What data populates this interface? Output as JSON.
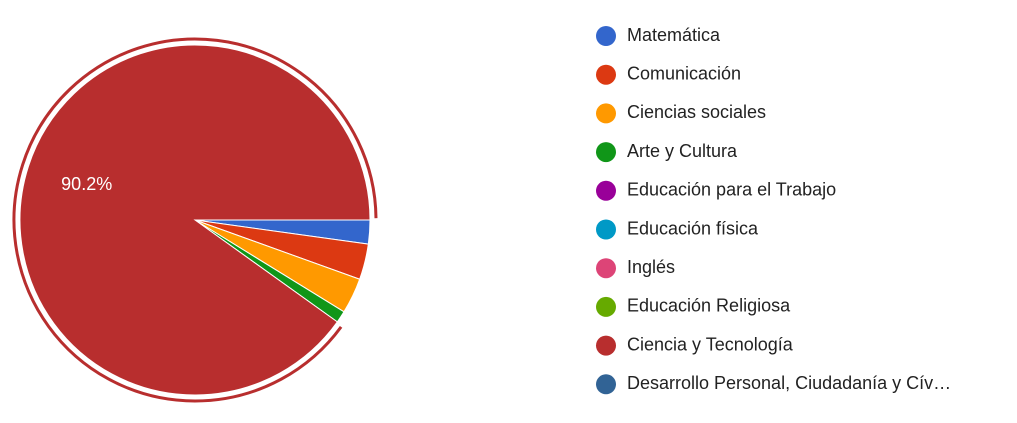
{
  "chart_data": {
    "type": "pie",
    "categories": [
      "Matemática",
      "Comunicación",
      "Ciencias sociales",
      "Arte y Cultura",
      "Educación para el Trabajo",
      "Educación física",
      "Inglés",
      "Educación Religiosa",
      "Ciencia y Tecnología",
      "Desarrollo Personal, Ciudadanía y Cív…"
    ],
    "values": [
      2.2,
      3.3,
      3.3,
      1.1,
      0,
      0,
      0,
      0,
      90.2,
      0
    ],
    "value_labels": [
      null,
      null,
      null,
      null,
      null,
      null,
      null,
      null,
      "90.2%",
      null
    ],
    "colors": [
      "#3366cc",
      "#dc3912",
      "#ff9900",
      "#109618",
      "#990099",
      "#0099c6",
      "#dd4477",
      "#66aa00",
      "#b82e2e",
      "#316395"
    ],
    "legend": "right"
  }
}
